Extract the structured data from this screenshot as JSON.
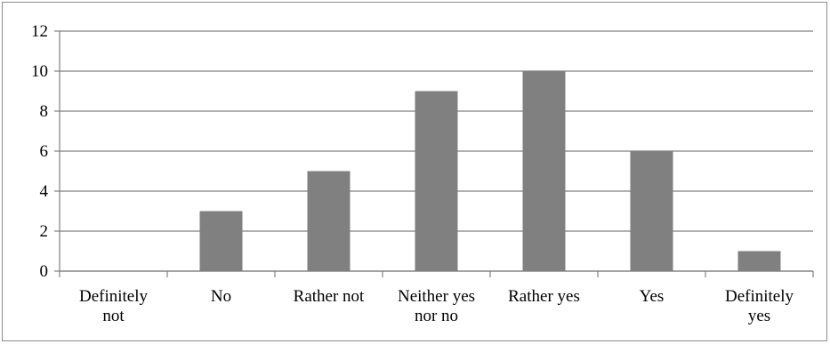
{
  "chart_data": {
    "type": "bar",
    "categories": [
      [
        "Definitely",
        "not"
      ],
      [
        "No"
      ],
      [
        "Rather not"
      ],
      [
        "Neither yes",
        "nor no"
      ],
      [
        "Rather yes"
      ],
      [
        "Yes"
      ],
      [
        "Definitely",
        "yes"
      ]
    ],
    "values": [
      0,
      3,
      5,
      9,
      10,
      6,
      1
    ],
    "ylim": [
      0,
      12
    ],
    "yticks": [
      "0",
      "2",
      "4",
      "6",
      "8",
      "10",
      "12"
    ],
    "grid": true,
    "legend": "none",
    "title": "",
    "xlabel": "",
    "ylabel": "",
    "bar_color": "#808080",
    "axis_color": "#808080",
    "grid_color": "#808080"
  }
}
